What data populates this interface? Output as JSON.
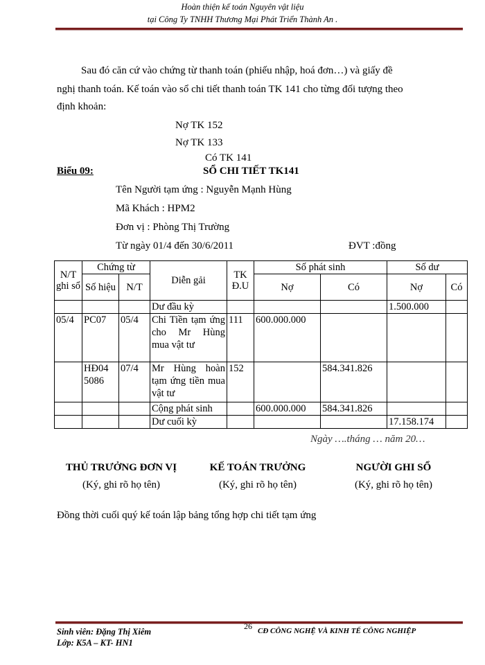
{
  "header": {
    "line1": "Hoàn thiện kế toán Nguyên vật liệu",
    "line2": "tại Công Ty TNHH Thương Mại Phát Triển Thành An    ."
  },
  "intro": {
    "line1": "Sau đó căn cứ vào chứng từ thanh toán (phiếu nhập, hoá đơn…) và giấy đề",
    "line2": "nghị thanh toán. Kế toán vào sổ chi tiết thanh toán TK 141 cho từng đối tượng theo",
    "line3": "định khoản:"
  },
  "entries": [
    "Nợ TK 152",
    "Nợ TK 133",
    "Có TK 141"
  ],
  "form_label": "Biểu 09:",
  "title": "SỔ CHI TIẾT TK141",
  "info": {
    "person": "Tên Người tạm ứng : Nguyễn Mạnh Hùng",
    "code": "Mã Khách : HPM2",
    "unit": "Đơn vị : Phòng Thị Trường",
    "period": "Từ ngày 01/4 đến 30/6/2011",
    "currency": "ĐVT :đồng"
  },
  "table": {
    "headers": {
      "date": "N/T ghi sổ",
      "voucher": "Chứng từ",
      "voucher_no": "Số hiệu",
      "voucher_date": "N/T",
      "desc": "Diễn gải",
      "acct": "TK Đ.U",
      "arising": "Số phát sinh",
      "balance": "Số dư",
      "debit": "Nợ",
      "credit": "Có",
      "bal_debit": "Nợ",
      "bal_credit": "Có"
    },
    "rows": [
      {
        "date": "",
        "no": "",
        "nt": "",
        "desc": "Dư đầu kỳ",
        "acct": "",
        "debit": "",
        "credit": "",
        "bal_debit": "1.500.000",
        "bal_credit": ""
      },
      {
        "date": "05/4",
        "no": "PC07",
        "nt": "05/4",
        "desc": "Chi Tiền tạm ứng cho Mr Hùng mua vật tư",
        "acct": "111",
        "debit": "600.000.000",
        "credit": "",
        "bal_debit": "",
        "bal_credit": ""
      },
      {
        "date": "",
        "no": "HĐ04 5086",
        "nt": "07/4",
        "desc": "Mr Hùng hoàn tạm ứng tiền mua vật tư",
        "acct": "152",
        "debit": "",
        "credit": "584.341.826",
        "bal_debit": "",
        "bal_credit": ""
      },
      {
        "date": "",
        "no": "",
        "nt": "",
        "desc": "Cộng phát sinh",
        "acct": "",
        "debit": "600.000.000",
        "credit": "584.341.826",
        "bal_debit": "",
        "bal_credit": ""
      },
      {
        "date": "",
        "no": "",
        "nt": "",
        "desc": "Dư cuối kỳ",
        "acct": "",
        "debit": "",
        "credit": "",
        "bal_debit": "17.158.174",
        "bal_credit": ""
      }
    ]
  },
  "date_line": "Ngày ….tháng … năm 20…",
  "signatures": [
    {
      "title": "THỦ TRƯỞNG ĐƠN VỊ",
      "note": "(Ký, ghi rõ họ tên)"
    },
    {
      "title": "KẾ TOÁN TRƯỞNG",
      "note": "(Ký, ghi rõ họ tên)"
    },
    {
      "title": "NGƯỜI GHI SỔ",
      "note": "(Ký, ghi rõ họ tên)"
    }
  ],
  "closing": "Đồng thời cuối quý kế toán lập bảng tổng hợp chi tiết tạm ứng",
  "footer": {
    "student": "Sinh viên: Đặng Thị Xiêm",
    "class": "Lớp:  K5A – KT- HN1",
    "page": "26",
    "school": "CĐ CÔNG NGHỆ VÀ KINH TẾ CÔNG NGHIỆP"
  }
}
